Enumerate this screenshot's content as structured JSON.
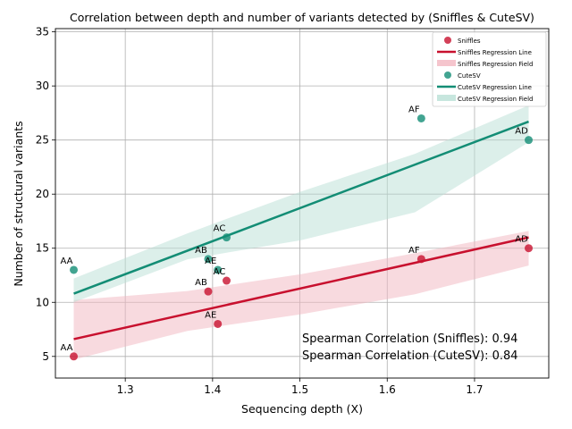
{
  "chart_data": {
    "type": "scatter",
    "title": "Correlation between depth and number of variants detected by (Sniffles & CuteSV)",
    "xlabel": "Sequencing depth (X)",
    "ylabel": "Number of structural variants",
    "xlim": [
      1.22,
      1.785
    ],
    "ylim": [
      3,
      35.3
    ],
    "xticks": [
      "1.3",
      "1.4",
      "1.5",
      "1.6",
      "1.7"
    ],
    "yticks": [
      "5",
      "10",
      "15",
      "20",
      "25",
      "30",
      "35"
    ],
    "grid": true,
    "legend_position": "top-right",
    "colors": {
      "sniffles": "#c8102e",
      "cutesv": "#138d75",
      "sniffles_band": "#f2b6c0",
      "cutesv_band": "#b9e0d6"
    },
    "legend": [
      "Sniffles",
      "Sniffles Regression Line",
      "Sniffles Regression Field",
      "CuteSV",
      "CuteSV Regression Line",
      "CuteSV Regression Field"
    ],
    "series": [
      {
        "name": "Sniffles",
        "points": [
          {
            "label": "AA",
            "x": 1.241,
            "y": 5
          },
          {
            "label": "AB",
            "x": 1.395,
            "y": 11
          },
          {
            "label": "AE",
            "x": 1.406,
            "y": 8
          },
          {
            "label": "AC",
            "x": 1.416,
            "y": 12
          },
          {
            "label": "AF",
            "x": 1.639,
            "y": 14
          },
          {
            "label": "AD",
            "x": 1.762,
            "y": 15
          }
        ],
        "regression": {
          "x": [
            1.241,
            1.762
          ],
          "y": [
            6.6,
            16.0
          ]
        }
      },
      {
        "name": "CuteSV",
        "points": [
          {
            "label": "AA",
            "x": 1.241,
            "y": 13
          },
          {
            "label": "AB",
            "x": 1.395,
            "y": 14
          },
          {
            "label": "AE",
            "x": 1.406,
            "y": 13
          },
          {
            "label": "AC",
            "x": 1.416,
            "y": 16
          },
          {
            "label": "AF",
            "x": 1.639,
            "y": 27
          },
          {
            "label": "AD",
            "x": 1.762,
            "y": 25
          }
        ],
        "regression": {
          "x": [
            1.241,
            1.762
          ],
          "y": [
            10.8,
            26.7
          ]
        }
      }
    ],
    "annotations": [
      "Spearman Correlation (Sniffles): 0.94",
      "Spearman Correlation (CuteSV): 0.84"
    ]
  }
}
